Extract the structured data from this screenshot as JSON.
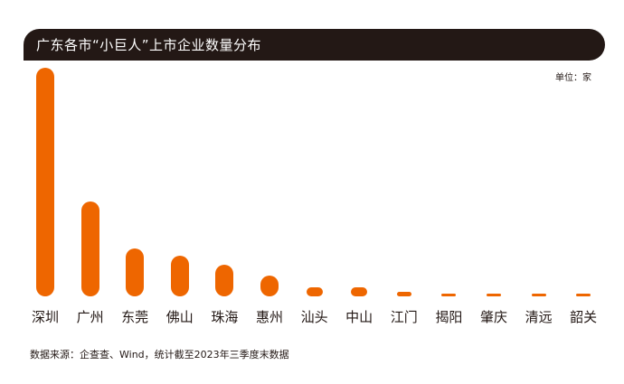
{
  "header": {
    "title": "广东各市“小巨人”上市企业数量分布"
  },
  "unit_label": "单位：家",
  "source_note": "数据来源：企查查、Wind，统计截至2023年三季度末数据",
  "colors": {
    "bar": "#ee6600",
    "title_bg": "#231815",
    "title_text": "#ffffff"
  },
  "chart_data": {
    "type": "bar",
    "title": "广东各市“小巨人”上市企业数量分布",
    "xlabel": "",
    "ylabel": "单位：家",
    "categories": [
      "深圳",
      "广州",
      "东莞",
      "佛山",
      "珠海",
      "惠州",
      "汕头",
      "中山",
      "江门",
      "揭阳",
      "肇庆",
      "清远",
      "韶关"
    ],
    "values": [
      101,
      42,
      21,
      18,
      14,
      9,
      4,
      4,
      2,
      1,
      1,
      1,
      1
    ],
    "ylim": [
      0,
      101
    ],
    "grid": false,
    "legend": "none",
    "note": "数据来源：企查查、Wind，统计截至2023年三季度末数据"
  }
}
